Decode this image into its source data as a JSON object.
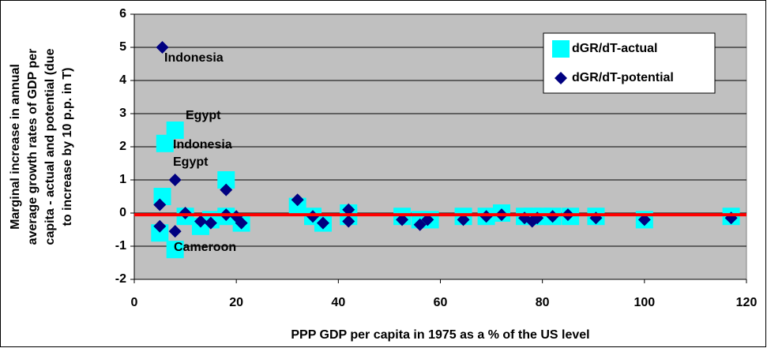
{
  "chart_data": {
    "type": "scatter",
    "xlabel": "PPP GDP per capita in 1975 as a % of the US level",
    "ylabel": [
      "Marginal increase in annual",
      "average growth rates of GDP per",
      "capita - actual and potential (due",
      "to increase by 10 p.p. in T)"
    ],
    "xlim": [
      0,
      120
    ],
    "xticks": [
      0,
      20,
      40,
      60,
      80,
      100,
      120
    ],
    "ylim": [
      -2,
      6
    ],
    "yticks": [
      -2,
      -1,
      0,
      1,
      2,
      3,
      4,
      5,
      6
    ],
    "grid": true,
    "legend": "upper right",
    "reference_line": {
      "value": -0.05,
      "color": "#ff0000"
    },
    "annotations": [
      "Indonesia",
      "Egypt",
      "Indonesia",
      "Egypt",
      "Cameroon"
    ],
    "series": [
      {
        "name": "dGR/dT-actual",
        "color": "#00ffff",
        "marker": "square",
        "x": [
          5,
          5.5,
          6,
          8,
          8,
          10,
          13,
          15,
          18,
          18,
          21,
          32,
          35,
          37,
          42,
          42,
          52.5,
          56,
          58,
          64.5,
          69,
          72,
          76.5,
          78,
          80,
          82,
          85.5,
          90.5,
          100,
          117
        ],
        "values": [
          -0.6,
          0.5,
          2.1,
          2.5,
          -1.1,
          -0.1,
          -0.4,
          -0.2,
          1.0,
          -0.1,
          -0.3,
          0.2,
          -0.1,
          -0.3,
          0,
          -0.1,
          -0.1,
          -0.2,
          -0.2,
          -0.1,
          -0.1,
          0,
          -0.1,
          -0.1,
          -0.1,
          -0.1,
          -0.1,
          -0.1,
          -0.2,
          -0.1
        ]
      },
      {
        "name": "dGR/dT-potential",
        "color": "#000080",
        "marker": "diamond",
        "x": [
          5.5,
          5,
          5,
          8,
          8,
          10,
          13,
          15,
          18,
          18,
          20,
          21,
          32,
          35,
          37,
          42,
          42,
          52.5,
          56,
          57.5,
          64.5,
          69,
          72,
          76.5,
          78,
          79,
          82,
          85,
          90.5,
          100,
          117
        ],
        "values": [
          5.0,
          -0.4,
          0.25,
          1.0,
          -0.55,
          0,
          -0.25,
          -0.3,
          0.7,
          -0.05,
          -0.1,
          -0.3,
          0.4,
          -0.1,
          -0.3,
          0.1,
          -0.25,
          -0.2,
          -0.35,
          -0.2,
          -0.2,
          -0.1,
          -0.05,
          -0.15,
          -0.25,
          -0.15,
          -0.1,
          -0.05,
          -0.15,
          -0.2,
          -0.15
        ]
      }
    ]
  }
}
